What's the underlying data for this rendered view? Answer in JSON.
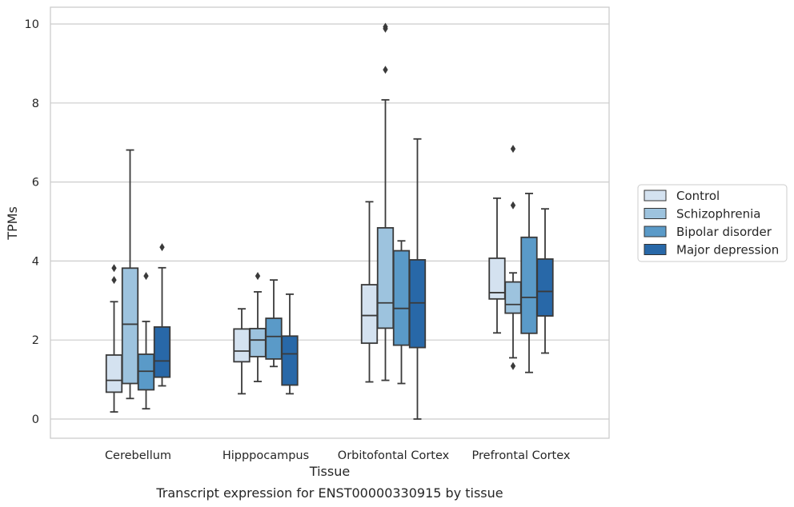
{
  "chart_data": {
    "type": "boxplot",
    "title": "Transcript expression for ENST00000330915 by tissue",
    "xlabel": "Tissue",
    "ylabel": "TPMs",
    "ylim": [
      -0.45,
      10.4
    ],
    "yticks": [
      0,
      2,
      4,
      6,
      8,
      10
    ],
    "grid": "horizontal",
    "legend_position": "right",
    "categories": [
      "Cerebellum",
      "Hipppocampus",
      "Orbitofontal Cortex",
      "Prefrontal Cortex"
    ],
    "series": [
      {
        "name": "Control",
        "color": "#d4e2f0",
        "boxes": [
          {
            "whislo": 0.18,
            "q1": 0.68,
            "med": 0.98,
            "q3": 1.62,
            "whishi": 2.97,
            "fliers": [
              3.52,
              3.82
            ]
          },
          {
            "whislo": 0.64,
            "q1": 1.45,
            "med": 1.72,
            "q3": 2.28,
            "whishi": 2.79,
            "fliers": []
          },
          {
            "whislo": 0.94,
            "q1": 1.92,
            "med": 2.62,
            "q3": 3.4,
            "whishi": 5.5,
            "fliers": []
          },
          {
            "whislo": 2.18,
            "q1": 3.04,
            "med": 3.2,
            "q3": 4.07,
            "whishi": 5.59,
            "fliers": []
          }
        ]
      },
      {
        "name": "Schizophrenia",
        "color": "#9dc3de",
        "boxes": [
          {
            "whislo": 0.52,
            "q1": 0.9,
            "med": 2.4,
            "q3": 3.82,
            "whishi": 6.81,
            "fliers": []
          },
          {
            "whislo": 0.95,
            "q1": 1.58,
            "med": 2.0,
            "q3": 2.29,
            "whishi": 3.22,
            "fliers": [
              3.62
            ]
          },
          {
            "whislo": 0.98,
            "q1": 2.3,
            "med": 2.94,
            "q3": 4.84,
            "whishi": 8.08,
            "fliers": [
              8.84,
              9.88,
              9.93
            ]
          },
          {
            "whislo": 1.55,
            "q1": 2.68,
            "med": 2.9,
            "q3": 3.47,
            "whishi": 3.7,
            "fliers": [
              1.34,
              5.41,
              6.84
            ]
          }
        ]
      },
      {
        "name": "Bipolar disorder",
        "color": "#5a9ac8",
        "boxes": [
          {
            "whislo": 0.26,
            "q1": 0.74,
            "med": 1.21,
            "q3": 1.64,
            "whishi": 2.47,
            "fliers": [
              3.62
            ]
          },
          {
            "whislo": 1.33,
            "q1": 1.52,
            "med": 2.09,
            "q3": 2.55,
            "whishi": 3.52,
            "fliers": []
          },
          {
            "whislo": 0.9,
            "q1": 1.87,
            "med": 2.8,
            "q3": 4.26,
            "whishi": 4.51,
            "fliers": []
          },
          {
            "whislo": 1.18,
            "q1": 2.17,
            "med": 3.08,
            "q3": 4.6,
            "whishi": 5.71,
            "fliers": []
          }
        ]
      },
      {
        "name": "Major depression",
        "color": "#2868a8",
        "boxes": [
          {
            "whislo": 0.84,
            "q1": 1.06,
            "med": 1.47,
            "q3": 2.33,
            "whishi": 3.83,
            "fliers": [
              4.35
            ]
          },
          {
            "whislo": 0.64,
            "q1": 0.86,
            "med": 1.65,
            "q3": 2.1,
            "whishi": 3.16,
            "fliers": []
          },
          {
            "whislo": 0.0,
            "q1": 1.81,
            "med": 2.94,
            "q3": 4.03,
            "whishi": 7.09,
            "fliers": []
          },
          {
            "whislo": 1.67,
            "q1": 2.61,
            "med": 3.23,
            "q3": 4.05,
            "whishi": 5.32,
            "fliers": []
          }
        ]
      }
    ]
  }
}
